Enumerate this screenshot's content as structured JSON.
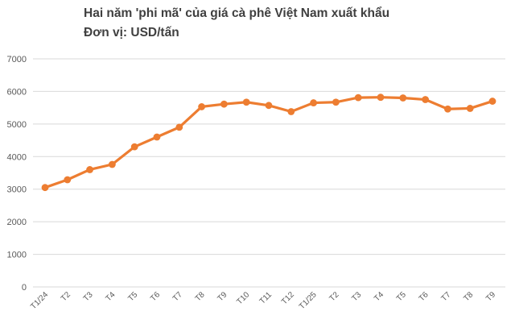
{
  "chart_data": {
    "type": "line",
    "title": "Hai năm 'phi mã' của giá cà phê Việt Nam xuất khẩu",
    "subtitle": "Đơn vị: USD/tấn",
    "categories": [
      "T1/24",
      "T2",
      "T3",
      "T4",
      "T5",
      "T6",
      "T7",
      "T8",
      "T9",
      "T10",
      "T11",
      "T12",
      "T1/25",
      "T2",
      "T3",
      "T4",
      "T5",
      "T6",
      "T7",
      "T8",
      "T9"
    ],
    "values": [
      3050,
      3290,
      3600,
      3760,
      4300,
      4600,
      4900,
      5530,
      5610,
      5670,
      5570,
      5380,
      5650,
      5670,
      5810,
      5820,
      5800,
      5750,
      5460,
      5480,
      5700
    ],
    "ylim": [
      0,
      7000
    ],
    "ytick_step": 1000,
    "yticks": [
      0,
      1000,
      2000,
      3000,
      4000,
      5000,
      6000,
      7000
    ],
    "grid": true,
    "legend_position": "none",
    "colors": {
      "line": "#ED7D31",
      "marker": "#ED7D31",
      "gridline": "#D9D9D9",
      "axis_labels": "#595959",
      "title": "#404040"
    }
  }
}
